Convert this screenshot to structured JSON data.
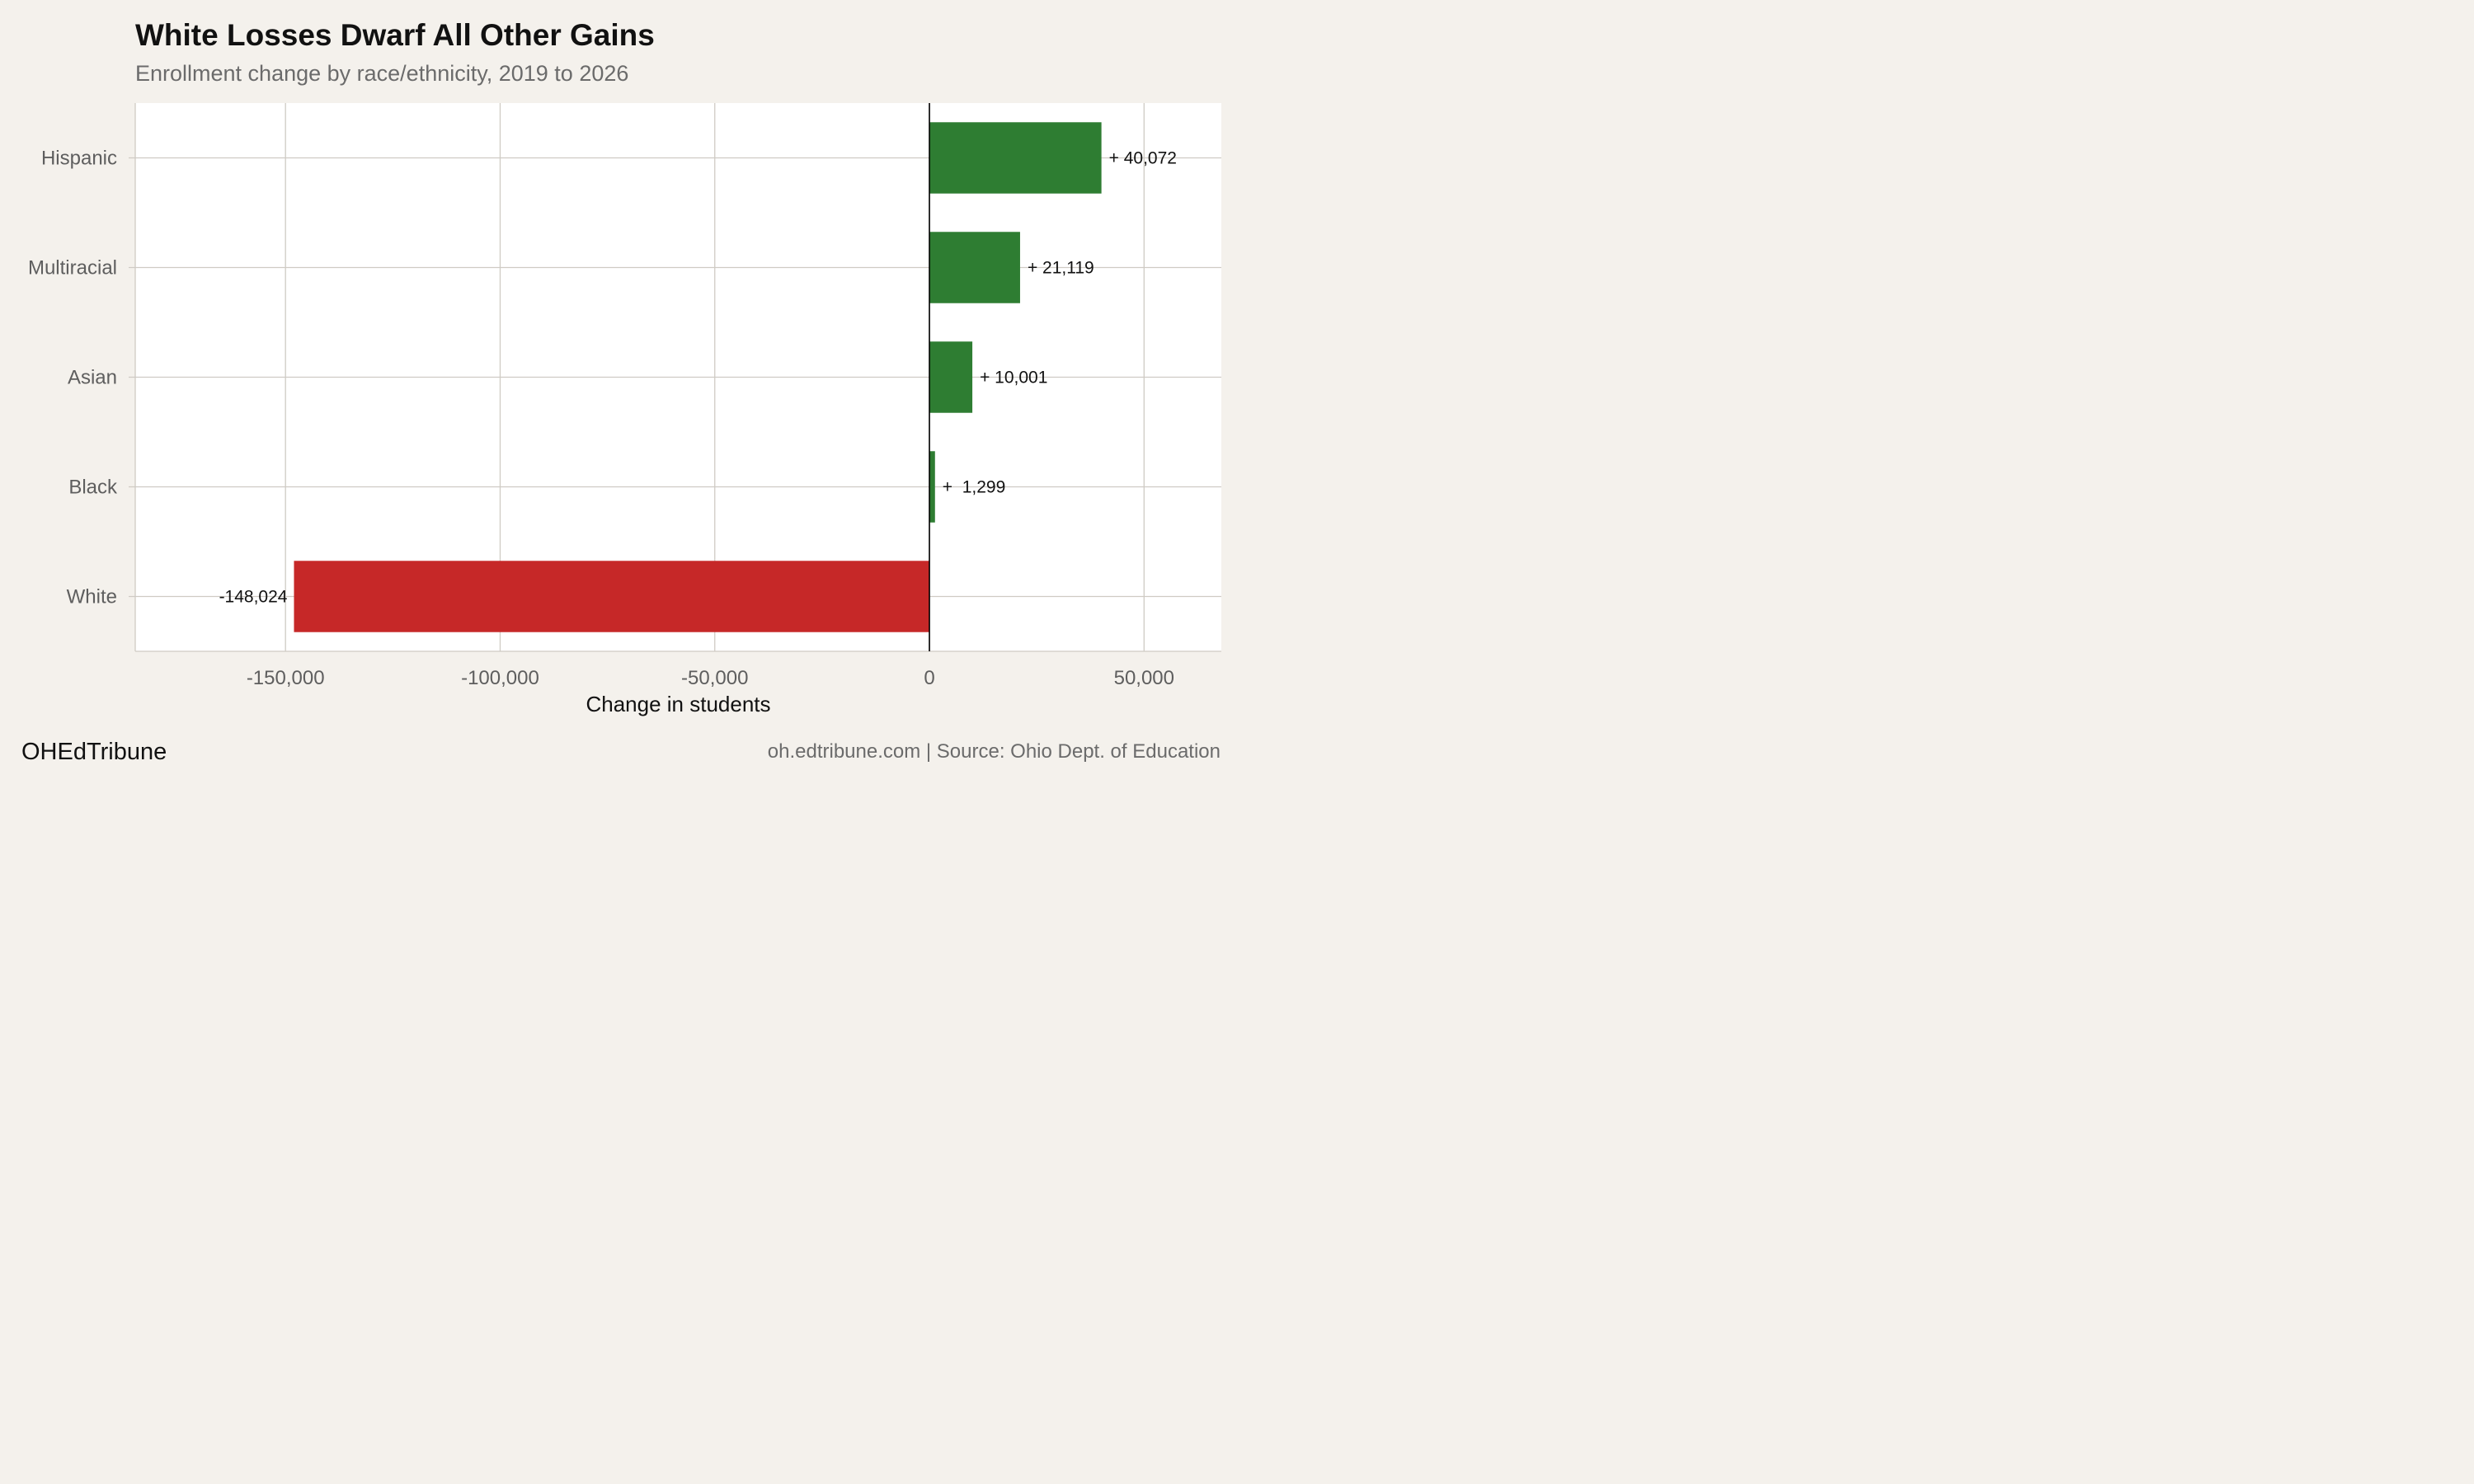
{
  "chart_data": {
    "type": "bar",
    "orientation": "horizontal",
    "title": "White Losses Dwarf All Other Gains",
    "subtitle": "Enrollment change by race/ethnicity, 2019 to 2026",
    "xlabel": "Change in students",
    "ylabel": "",
    "categories": [
      "Hispanic",
      "Multiracial",
      "Asian",
      "Black",
      "White"
    ],
    "values": [
      40072,
      21119,
      10001,
      1299,
      -148024
    ],
    "data_labels": [
      "+ 40,072",
      "+ 21,119",
      "+ 10,001",
      "+  1,299",
      "-148,024"
    ],
    "xlim": [
      -185000,
      68000
    ],
    "x_ticks": [
      -150000,
      -100000,
      -50000,
      0,
      50000
    ],
    "x_tick_labels": [
      "-150,000",
      "-100,000",
      "-50,000",
      "0",
      "50,000"
    ],
    "grid": true,
    "colors": {
      "positive": "#2e7d32",
      "negative": "#c62828",
      "plot_background": "#ffffff",
      "page_background": "#f4f1ec",
      "grid": "#cfcbc4",
      "zero_line": "#000000"
    }
  },
  "footer": {
    "brand": "OHEdTribune",
    "source": "oh.edtribune.com | Source: Ohio Dept. of Education"
  }
}
